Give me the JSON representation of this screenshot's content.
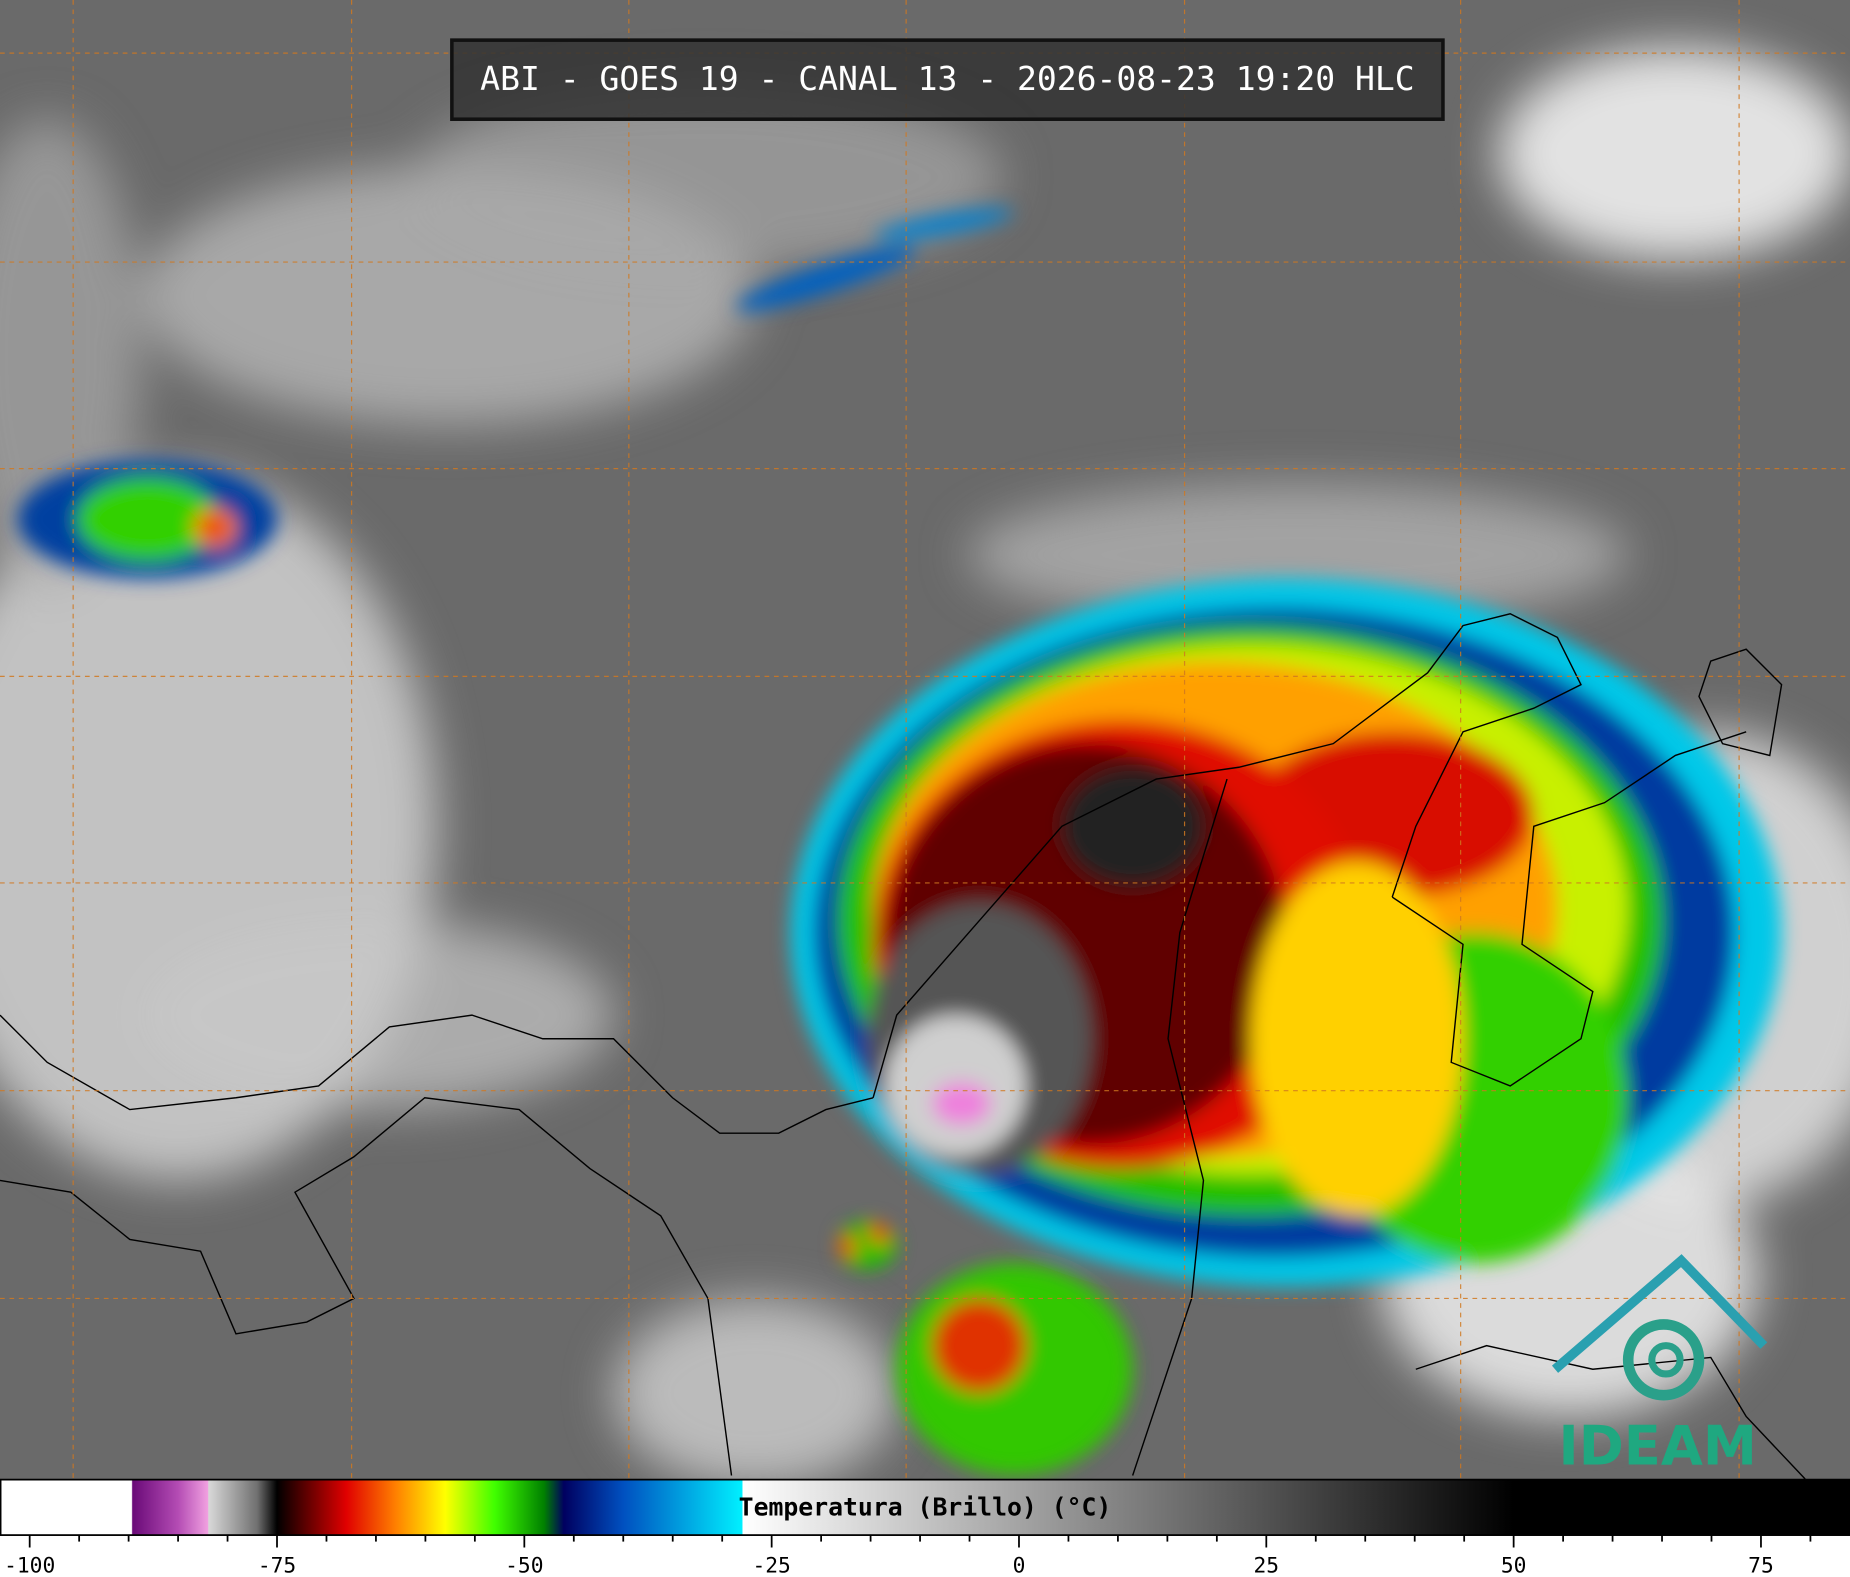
{
  "header": {
    "title": "ABI - GOES 19 - CANAL 13 - 2026-08-23 19:20 HLC"
  },
  "logo": {
    "text": "IDEAM"
  },
  "colorbar": {
    "label": "Temperatura (Brillo) (°C)",
    "range": [
      -103,
      84
    ],
    "ticks": [
      -100,
      -75,
      -50,
      -25,
      0,
      25,
      50,
      75
    ],
    "minor_ticks": [
      -95,
      -90,
      -85,
      -80,
      -70,
      -65,
      -60,
      -55,
      -45,
      -40,
      -35,
      -30,
      -20,
      -15,
      -10,
      -5,
      5,
      10,
      15,
      20,
      30,
      35,
      40,
      45,
      55,
      60,
      65,
      70,
      80
    ],
    "stops": [
      {
        "value": -103,
        "color": "#ffffff"
      },
      {
        "value": -89.7,
        "color": "#ffffff"
      },
      {
        "value": -89.6,
        "color": "#6a0a78"
      },
      {
        "value": -85,
        "color": "#b44cb4"
      },
      {
        "value": -82,
        "color": "#f0a0e0"
      },
      {
        "value": -81.9,
        "color": "#d8d8d8"
      },
      {
        "value": -77,
        "color": "#707070"
      },
      {
        "value": -75,
        "color": "#000000"
      },
      {
        "value": -72,
        "color": "#600000"
      },
      {
        "value": -68,
        "color": "#e00000"
      },
      {
        "value": -63,
        "color": "#ff8000"
      },
      {
        "value": -58,
        "color": "#ffff00"
      },
      {
        "value": -53,
        "color": "#40ff00"
      },
      {
        "value": -48,
        "color": "#008000"
      },
      {
        "value": -46,
        "color": "#000060"
      },
      {
        "value": -40,
        "color": "#0050c0"
      },
      {
        "value": -28,
        "color": "#00f0ff"
      },
      {
        "value": -27.9,
        "color": "#ffffff"
      },
      {
        "value": 50,
        "color": "#000000"
      },
      {
        "value": 84,
        "color": "#000000"
      }
    ]
  }
}
